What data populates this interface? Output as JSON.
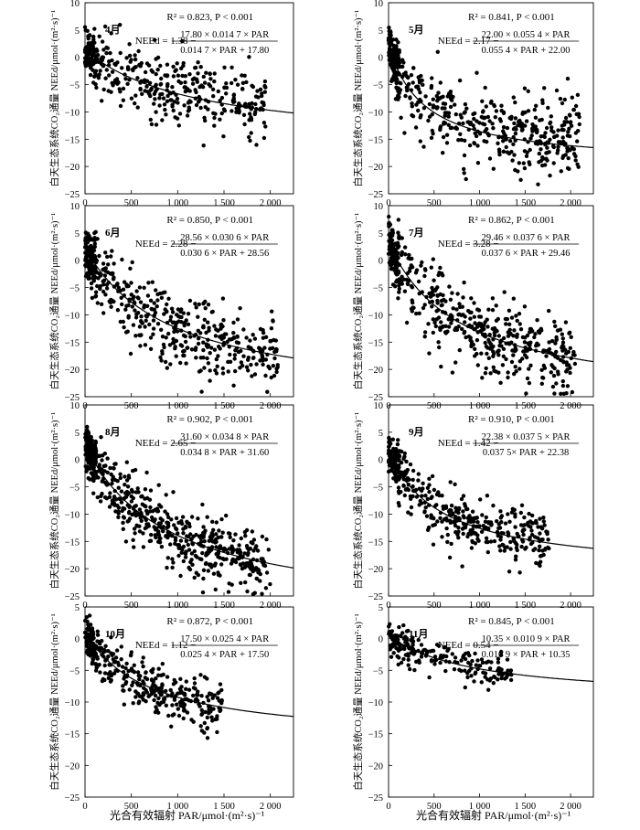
{
  "figure": {
    "y_axis_label": "白天生态系统CO₂通量 NEEd/μmol·(m²·s)⁻¹",
    "x_axis_label": "光合有效辐射 PAR/μmol·(m²·s)⁻¹"
  },
  "chart_data": [
    {
      "type": "scatter",
      "month": "4月",
      "r2_text": "R² = 0.823, P < 0.001",
      "eq_lhs": "NEEd = 1.38 −",
      "eq_num": "17.80 × 0.014 7 × PAR",
      "eq_den": "0.014 7 × PAR + 17.80",
      "params": {
        "R": 1.38,
        "Amax": 17.8,
        "alpha": 0.0147
      },
      "xlim": [
        0,
        2250
      ],
      "ylim": [
        -25,
        10
      ],
      "x_ticks": [
        0,
        500,
        1000,
        1500,
        2000
      ],
      "x_tick_labels": [
        "0",
        "500",
        "1 000",
        "1 500",
        "2 000"
      ],
      "y_ticks": [
        10,
        5,
        0,
        -5,
        -10,
        -15,
        -20,
        -25
      ],
      "scatter": {
        "count": 420,
        "x_max": 1950,
        "y_scale": 0.88,
        "noise": 3.1,
        "seed": 11
      },
      "fit_x_range": [
        0,
        2250
      ]
    },
    {
      "type": "scatter",
      "month": "5月",
      "r2_text": "R² = 0.841, P < 0.001",
      "eq_lhs": "NEEd = 2.17 −",
      "eq_num": "22.00 × 0.055 4 × PAR",
      "eq_den": "0.055 4 × PAR + 22.00",
      "params": {
        "R": 2.17,
        "Amax": 22.0,
        "alpha": 0.0554
      },
      "xlim": [
        0,
        2250
      ],
      "ylim": [
        -25,
        10
      ],
      "x_ticks": [
        0,
        500,
        1000,
        1500,
        2000
      ],
      "x_tick_labels": [
        "0",
        "500",
        "1 000",
        "1 500",
        "2 000"
      ],
      "y_ticks": [
        10,
        5,
        0,
        -5,
        -10,
        -15,
        -20,
        -25
      ],
      "scatter": {
        "count": 520,
        "x_max": 2100,
        "y_scale": 0.93,
        "noise": 3.5,
        "seed": 23
      },
      "fit_x_range": [
        0,
        2250
      ]
    },
    {
      "type": "scatter",
      "month": "6月",
      "r2_text": "R² = 0.850, P < 0.001",
      "eq_lhs": "NEEd = 2.28 −",
      "eq_num": "28.56 × 0.030 6 × PAR",
      "eq_den": "0.030 6 × PAR + 28.56",
      "params": {
        "R": 2.28,
        "Amax": 28.56,
        "alpha": 0.0306
      },
      "xlim": [
        0,
        2250
      ],
      "ylim": [
        -25,
        10
      ],
      "x_ticks": [
        0,
        500,
        1000,
        1500,
        2000
      ],
      "x_tick_labels": [
        "0",
        "500",
        "1 000",
        "1 500",
        "2 000"
      ],
      "y_ticks": [
        10,
        5,
        0,
        -5,
        -10,
        -15,
        -20,
        -25
      ],
      "scatter": {
        "count": 520,
        "x_max": 2100,
        "y_scale": 1.0,
        "noise": 3.4,
        "seed": 37
      },
      "fit_x_range": [
        0,
        2250
      ]
    },
    {
      "type": "scatter",
      "month": "7月",
      "r2_text": "R² = 0.862, P < 0.001",
      "eq_lhs": "NEEd = 3.28 −",
      "eq_num": "29.46 × 0.037 6 × PAR",
      "eq_den": "0.037 6 × PAR + 29.46",
      "params": {
        "R": 3.28,
        "Amax": 29.46,
        "alpha": 0.0376
      },
      "xlim": [
        0,
        2250
      ],
      "ylim": [
        -25,
        10
      ],
      "x_ticks": [
        0,
        500,
        1000,
        1500,
        2000
      ],
      "x_tick_labels": [
        "0",
        "500",
        "1 000",
        "1 500",
        "2 000"
      ],
      "y_ticks": [
        10,
        5,
        0,
        -5,
        -10,
        -15,
        -20,
        -25
      ],
      "scatter": {
        "count": 520,
        "x_max": 2050,
        "y_scale": 1.0,
        "noise": 3.4,
        "seed": 41
      },
      "fit_x_range": [
        0,
        2250
      ]
    },
    {
      "type": "scatter",
      "month": "8月",
      "r2_text": "R² = 0.902, P < 0.001",
      "eq_lhs": "NEEd = 2.65 −",
      "eq_num": "31.60 × 0.034 8 × PAR",
      "eq_den": "0.034 8 × PAR + 31.60",
      "params": {
        "R": 2.65,
        "Amax": 31.6,
        "alpha": 0.0348
      },
      "xlim": [
        0,
        2250
      ],
      "ylim": [
        -25,
        10
      ],
      "x_ticks": [
        0,
        500,
        1000,
        1500,
        2000
      ],
      "x_tick_labels": [
        "0",
        "500",
        "1 000",
        "1 500",
        "2 000"
      ],
      "y_ticks": [
        10,
        5,
        0,
        -5,
        -10,
        -15,
        -20,
        -25
      ],
      "scatter": {
        "count": 620,
        "x_max": 2000,
        "y_scale": 1.0,
        "noise": 3.0,
        "seed": 53
      },
      "fit_x_range": [
        0,
        2250
      ]
    },
    {
      "type": "scatter",
      "month": "9月",
      "r2_text": "R² = 0.910, P < 0.001",
      "eq_lhs": "NEEd = 1.42 −",
      "eq_num": "22.38 × 0.037 5 × PAR",
      "eq_den": "0.037 5× PAR + 22.38",
      "params": {
        "R": 1.42,
        "Amax": 22.38,
        "alpha": 0.0375
      },
      "xlim": [
        0,
        2250
      ],
      "ylim": [
        -25,
        10
      ],
      "x_ticks": [
        0,
        500,
        1000,
        1500,
        2000
      ],
      "x_tick_labels": [
        "0",
        "500",
        "1 000",
        "1 500",
        "2 000"
      ],
      "y_ticks": [
        10,
        5,
        0,
        -5,
        -10,
        -15,
        -20,
        -25
      ],
      "scatter": {
        "count": 460,
        "x_max": 1780,
        "y_scale": 1.0,
        "noise": 2.4,
        "seed": 67
      },
      "fit_x_range": [
        0,
        2250
      ]
    },
    {
      "type": "scatter",
      "month": "10月",
      "r2_text": "R² = 0.872, P < 0.001",
      "eq_lhs": "NEEd = 1.12 −",
      "eq_num": "17.50 × 0.025 4 × PAR",
      "eq_den": "0.025 4 × PAR + 17.50",
      "params": {
        "R": 1.12,
        "Amax": 17.5,
        "alpha": 0.0254
      },
      "xlim": [
        0,
        2250
      ],
      "ylim": [
        -25,
        5
      ],
      "x_ticks": [
        0,
        500,
        1000,
        1500,
        2000
      ],
      "x_tick_labels": [
        "0",
        "500",
        "1 000",
        "1 500",
        "2 000"
      ],
      "y_ticks": [
        5,
        0,
        -5,
        -10,
        -15,
        -20,
        -25
      ],
      "scatter": {
        "count": 380,
        "x_max": 1480,
        "y_scale": 1.0,
        "noise": 2.0,
        "seed": 79
      },
      "fit_x_range": [
        0,
        2250
      ]
    },
    {
      "type": "scatter",
      "month": "11月",
      "r2_text": "R² = 0.845, P < 0.001",
      "eq_lhs": "NEEd = 0.54 −",
      "eq_num": "10.35 × 0.010 9 × PAR",
      "eq_den": "0.010 9 × PAR + 10.35",
      "params": {
        "R": 0.54,
        "Amax": 10.35,
        "alpha": 0.0109
      },
      "xlim": [
        0,
        2250
      ],
      "ylim": [
        -25,
        5
      ],
      "x_ticks": [
        0,
        500,
        1000,
        1500,
        2000
      ],
      "x_tick_labels": [
        "0",
        "500",
        "1 000",
        "1 500",
        "2 000"
      ],
      "y_ticks": [
        5,
        0,
        -5,
        -10,
        -15,
        -20,
        -25
      ],
      "scatter": {
        "count": 210,
        "x_max": 1350,
        "y_scale": 1.0,
        "noise": 1.5,
        "seed": 97
      },
      "fit_x_range": [
        0,
        2250
      ]
    }
  ]
}
